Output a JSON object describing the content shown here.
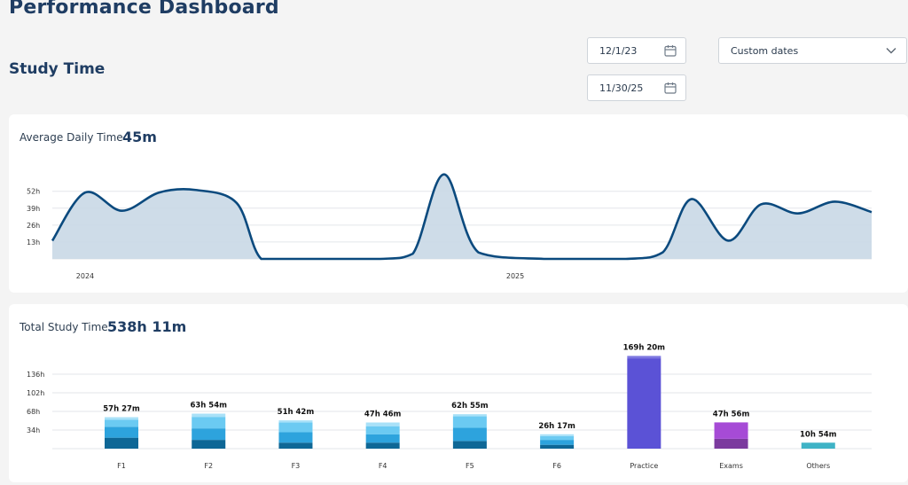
{
  "header": {
    "title": "Performance Dashboard",
    "section_title": "Study Time"
  },
  "filters": {
    "start_date": "12/1/23",
    "end_date": "11/30/25",
    "range": "Custom dates"
  },
  "icons": {
    "calendar": "calendar-icon",
    "dropdown": "chevron-down-icon"
  },
  "colors": {
    "line": "#0b4a7e",
    "area": "#c9d8e6",
    "practice": "#5b52d6",
    "exams": "#a64bd6",
    "others": "#3fb3c6",
    "f_dark": "#0e6796",
    "f_mid": "#2da3dd",
    "f_light": "#6bcaf2",
    "f_top": "#a9e1f8"
  },
  "daily": {
    "label": "Average Daily Time",
    "value": "45m"
  },
  "total": {
    "label": "Total Study Time",
    "value": "538h 11m"
  },
  "chart_data": [
    {
      "type": "area",
      "y_ticks": [
        "13h",
        "26h",
        "39h",
        "52h"
      ],
      "y_tick_values": [
        13,
        26,
        39,
        52
      ],
      "ylim": [
        0,
        60
      ],
      "x_ticks": [
        "2024",
        "2025"
      ],
      "x_tick_positions": [
        0.04,
        0.565
      ],
      "x": [
        0,
        0.04,
        0.085,
        0.13,
        0.175,
        0.225,
        0.255,
        0.3,
        0.4,
        0.44,
        0.478,
        0.52,
        0.6,
        0.7,
        0.745,
        0.78,
        0.825,
        0.865,
        0.91,
        0.955,
        1.0
      ],
      "values": [
        14,
        51,
        37,
        51,
        53,
        43,
        0,
        0,
        0,
        4,
        65,
        5,
        0,
        0,
        5,
        46,
        14,
        42,
        35,
        44,
        36
      ],
      "grid": true
    },
    {
      "type": "bar",
      "y_ticks": [
        "34h",
        "68h",
        "102h",
        "136h"
      ],
      "y_tick_values": [
        34,
        68,
        102,
        136
      ],
      "ylim": [
        0,
        170
      ],
      "categories": [
        "F1",
        "F2",
        "F3",
        "F4",
        "F5",
        "F6",
        "Practice",
        "Exams",
        "Others"
      ],
      "labels": [
        "57h 27m",
        "63h 54m",
        "51h 42m",
        "47h 46m",
        "62h 55m",
        "26h 17m",
        "169h 20m",
        "47h 56m",
        "10h 54m"
      ],
      "values": [
        57.45,
        63.9,
        51.7,
        47.77,
        62.92,
        26.28,
        169.33,
        47.93,
        10.9
      ],
      "segments": [
        [
          20,
          20,
          13,
          4.45
        ],
        [
          16,
          21,
          21,
          5.9
        ],
        [
          11,
          19,
          18,
          3.7
        ],
        [
          11,
          15,
          15,
          6.77
        ],
        [
          14,
          24,
          21,
          3.92
        ],
        [
          7,
          9,
          7,
          3.28
        ],
        [
          165,
          4.33
        ],
        [
          18,
          29.93
        ],
        [
          10.9
        ]
      ],
      "segment_colors": [
        [
          "f_dark",
          "f_mid",
          "f_light",
          "f_top"
        ],
        [
          "f_dark",
          "f_mid",
          "f_light",
          "f_top"
        ],
        [
          "f_dark",
          "f_mid",
          "f_light",
          "f_top"
        ],
        [
          "f_dark",
          "f_mid",
          "f_light",
          "f_top"
        ],
        [
          "f_dark",
          "f_mid",
          "f_light",
          "f_top"
        ],
        [
          "f_dark",
          "f_mid",
          "f_light",
          "f_top"
        ],
        [
          "practice",
          "practice_top"
        ],
        [
          "exams_dark",
          "exams"
        ],
        [
          "others"
        ]
      ],
      "grid": true
    }
  ]
}
